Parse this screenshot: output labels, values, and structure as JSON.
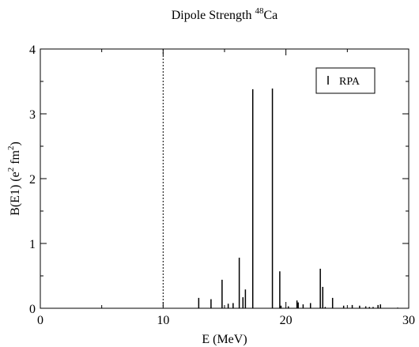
{
  "chart_data": {
    "type": "bar",
    "title": {
      "prefix": "Dipole Strength ",
      "mass_number": "48",
      "element": "Ca"
    },
    "xlabel": "E (MeV)",
    "ylabel": {
      "main": "B(E1) (e",
      "sup1": "2",
      "mid": " fm",
      "sup2": "2",
      "end": ")"
    },
    "xlim": [
      0,
      30
    ],
    "ylim": [
      0,
      4
    ],
    "x_ticks": [
      0,
      10,
      20,
      30
    ],
    "y_ticks": [
      0,
      1,
      2,
      3,
      4
    ],
    "x_tick_labels": [
      "0",
      "10",
      "20",
      "30"
    ],
    "y_tick_labels": [
      "0",
      "1",
      "2",
      "3",
      "4"
    ],
    "grid": false,
    "legend_position": "top-right",
    "vertical_reference_line_x": 10,
    "series": [
      {
        "name": "RPA",
        "color": "#000000",
        "points": [
          {
            "x": 12.9,
            "y": 0.16
          },
          {
            "x": 13.9,
            "y": 0.14
          },
          {
            "x": 14.8,
            "y": 0.44
          },
          {
            "x": 15.3,
            "y": 0.07
          },
          {
            "x": 15.7,
            "y": 0.08
          },
          {
            "x": 16.2,
            "y": 0.78
          },
          {
            "x": 16.5,
            "y": 0.17
          },
          {
            "x": 16.7,
            "y": 0.29
          },
          {
            "x": 17.3,
            "y": 3.38
          },
          {
            "x": 18.9,
            "y": 3.39
          },
          {
            "x": 19.5,
            "y": 0.57
          },
          {
            "x": 19.6,
            "y": 0.04
          },
          {
            "x": 20.2,
            "y": 0.03
          },
          {
            "x": 20.9,
            "y": 0.12
          },
          {
            "x": 21.0,
            "y": 0.09
          },
          {
            "x": 21.4,
            "y": 0.06
          },
          {
            "x": 22.0,
            "y": 0.08
          },
          {
            "x": 22.8,
            "y": 0.61
          },
          {
            "x": 23.0,
            "y": 0.33
          },
          {
            "x": 23.2,
            "y": 0.02
          },
          {
            "x": 23.8,
            "y": 0.16
          },
          {
            "x": 24.7,
            "y": 0.04
          },
          {
            "x": 25.4,
            "y": 0.05
          },
          {
            "x": 26.0,
            "y": 0.04
          },
          {
            "x": 26.5,
            "y": 0.03
          },
          {
            "x": 26.8,
            "y": 0.02
          },
          {
            "x": 27.1,
            "y": 0.02
          },
          {
            "x": 27.5,
            "y": 0.05
          },
          {
            "x": 27.7,
            "y": 0.06
          },
          {
            "x": 29.1,
            "y": 0.01
          }
        ]
      }
    ]
  }
}
